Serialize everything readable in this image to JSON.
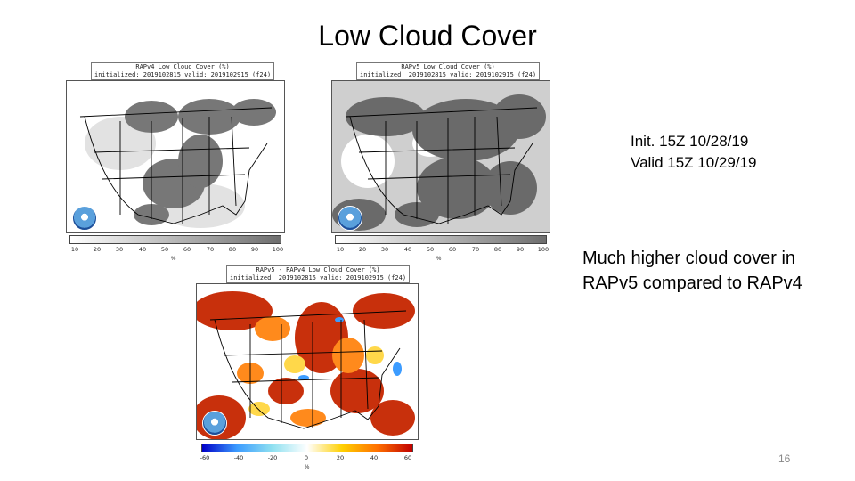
{
  "slide": {
    "title": "Low Cloud Cover",
    "init_line": "Init. 15Z 10/28/19",
    "valid_line": "Valid 15Z 10/29/19",
    "compare_line1": "Much higher cloud cover in",
    "compare_line2": "RAPv5 compared to RAPv4",
    "page_number": "16"
  },
  "maps": {
    "rapv4": {
      "title": "RAPv4 Low Cloud Cover (%)",
      "subtitle": "initialized: 2019102815 valid: 2019102915 (f24)",
      "colorbar_ticks": [
        "10",
        "20",
        "30",
        "40",
        "50",
        "60",
        "70",
        "80",
        "90",
        "100"
      ],
      "colorbar_unit": "%",
      "colors": [
        "#ffffff",
        "#6e6e6e"
      ]
    },
    "rapv5": {
      "title": "RAPv5 Low Cloud Cover (%)",
      "subtitle": "initialized: 2019102815 valid: 2019102915 (f24)",
      "colorbar_ticks": [
        "10",
        "20",
        "30",
        "40",
        "50",
        "60",
        "70",
        "80",
        "90",
        "100"
      ],
      "colorbar_unit": "%",
      "colors": [
        "#ffffff",
        "#6e6e6e"
      ]
    },
    "difference": {
      "title": "RAPv5 - RAPv4 Low Cloud Cover (%)",
      "subtitle": "initialized: 2019102815 valid: 2019102915 (f24)",
      "colorbar_ticks": [
        "-60",
        "-40",
        "-20",
        "0",
        "20",
        "40",
        "60"
      ],
      "colorbar_unit": "%",
      "colors": [
        "#0000c8",
        "#3c9cff",
        "#8fe0f0",
        "#ffffff",
        "#ffd000",
        "#ff7000",
        "#c00000"
      ]
    }
  }
}
